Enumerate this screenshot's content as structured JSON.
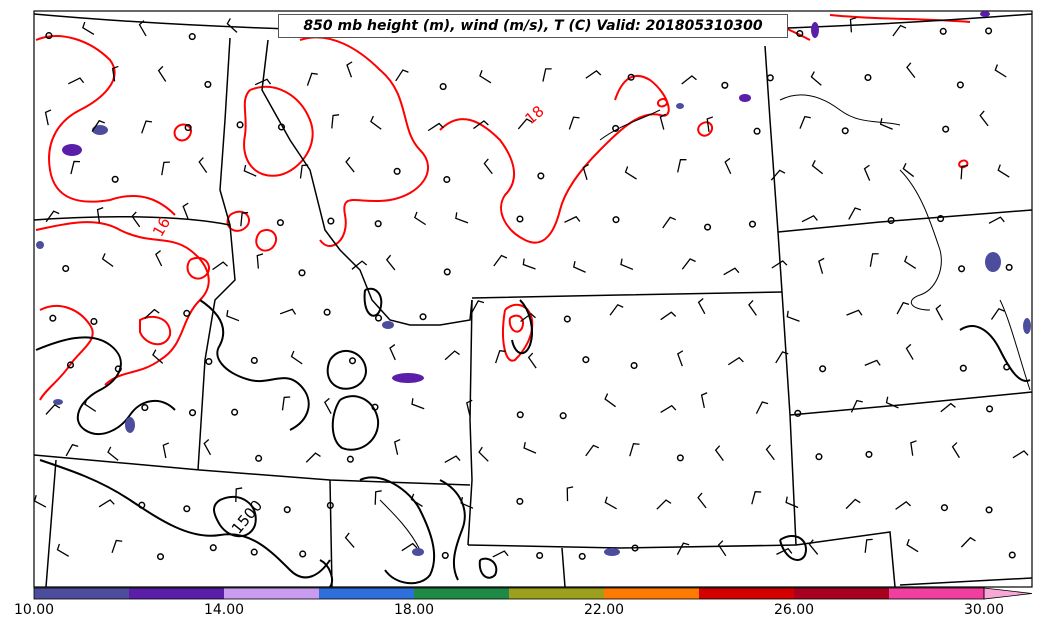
{
  "map": {
    "title": "850 mb height (m), wind (m/s), T (C) Valid: 201805310300"
  },
  "colorbar": {
    "ticks": [
      "10.00",
      "14.00",
      "18.00",
      "22.00",
      "26.00",
      "30.00"
    ],
    "colors": [
      "#4d4d9e",
      "#5a1ea8",
      "#c99cf0",
      "#2f6fdb",
      "#1f8a45",
      "#9ca01a",
      "#ff7a00",
      "#d40000",
      "#a8001e",
      "#f13ea0",
      "#f7a8d6"
    ]
  },
  "contours": {
    "temperature_color": "#ff0000",
    "height_color": "#000000",
    "labels": [
      {
        "text": "18",
        "kind": "temperature"
      },
      {
        "text": "16",
        "kind": "temperature"
      },
      {
        "text": "1500",
        "kind": "height"
      }
    ]
  }
}
